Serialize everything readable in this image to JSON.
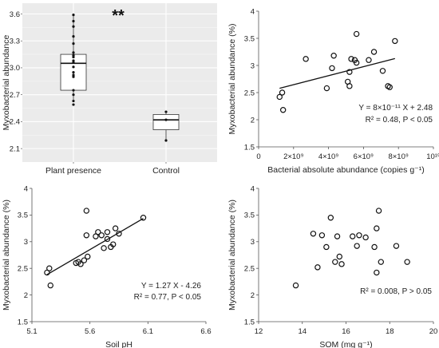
{
  "chart_data": [
    {
      "type": "box",
      "panel": "top-left",
      "categories": [
        "Plant presence",
        "Control"
      ],
      "ylabel": "Myxobacterial abundance",
      "yticks": [
        "2.1",
        "2.4",
        "2.7",
        "3.0",
        "3.3",
        "3.6"
      ],
      "ylim": [
        1.95,
        3.72
      ],
      "significance": "**",
      "grid": true,
      "boxes": [
        {
          "name": "Plant presence",
          "min": 2.63,
          "q1": 2.75,
          "median": 3.05,
          "q3": 3.15,
          "max": 3.59,
          "points": [
            3.59,
            3.52,
            3.46,
            3.35,
            3.27,
            3.17,
            3.14,
            3.12,
            3.08,
            3.06,
            3.01,
            2.95,
            2.92,
            2.9,
            2.75,
            2.7,
            2.63,
            2.59
          ]
        },
        {
          "name": "Control",
          "min": 2.19,
          "q1": 2.31,
          "median": 2.42,
          "q3": 2.48,
          "max": 2.51,
          "points": [
            2.51,
            2.42,
            2.19
          ]
        }
      ]
    },
    {
      "type": "scatter",
      "panel": "top-right",
      "xlabel": "Bacterial absolute abundance (copies g⁻¹)",
      "ylabel": "Myxobacterial abundance (%)",
      "xticks": [
        "0",
        "2×10⁹",
        "4×10⁹",
        "6×10⁹",
        "8×10⁹",
        "10¹⁰"
      ],
      "xlim": [
        0,
        10
      ],
      "yticks": [
        "1.5",
        "2",
        "2.5",
        "3",
        "3.5",
        "4"
      ],
      "ylim": [
        1.5,
        4
      ],
      "x": [
        1.2,
        1.35,
        1.4,
        2.7,
        3.9,
        4.2,
        4.3,
        5.1,
        5.2,
        5.3,
        5.5,
        5.6,
        5.6,
        5.2,
        6.3,
        6.6,
        7.1,
        7.4,
        7.5,
        7.8
      ],
      "y": [
        2.42,
        2.5,
        2.18,
        3.12,
        2.58,
        2.95,
        3.18,
        2.7,
        2.62,
        3.12,
        3.1,
        3.05,
        3.58,
        2.88,
        3.1,
        3.25,
        2.9,
        2.62,
        2.6,
        3.45
      ],
      "fit": {
        "slope": 0.0829,
        "intercept": 2.48,
        "x_range": [
          1.2,
          7.8
        ]
      },
      "equation": "Y = 8×10⁻¹¹ X + 2.48",
      "stats": "R² = 0.48, P < 0.05"
    },
    {
      "type": "scatter",
      "panel": "bottom-left",
      "xlabel": "Soil pH",
      "ylabel": "Myxobacterial abundance (%)",
      "xticks": [
        "5.1",
        "5.6",
        "6.1",
        "6.6"
      ],
      "xlim": [
        5.1,
        6.6
      ],
      "yticks": [
        "1.5",
        "2",
        "2.5",
        "3",
        "3.5",
        "4"
      ],
      "ylim": [
        1.5,
        4
      ],
      "x": [
        5.23,
        5.25,
        5.26,
        5.48,
        5.5,
        5.52,
        5.55,
        5.57,
        5.57,
        5.58,
        5.65,
        5.67,
        5.7,
        5.72,
        5.75,
        5.75,
        5.78,
        5.8,
        5.82,
        5.85,
        6.06
      ],
      "y": [
        2.42,
        2.5,
        2.18,
        2.6,
        2.62,
        2.58,
        2.65,
        3.12,
        3.58,
        2.72,
        3.1,
        3.18,
        3.12,
        2.88,
        3.05,
        3.18,
        2.9,
        2.95,
        3.25,
        3.15,
        3.45
      ],
      "fit": {
        "slope": 1.27,
        "intercept": -4.26,
        "x_range": [
          5.23,
          6.06
        ]
      },
      "equation": "Y = 1.27 X - 4.26",
      "stats": "R² = 0.77, P < 0.05"
    },
    {
      "type": "scatter",
      "panel": "bottom-right",
      "xlabel": "SOM (mg g⁻¹)",
      "ylabel": "Myxobacterial abundance (%)",
      "xticks": [
        "12",
        "14",
        "16",
        "18",
        "20"
      ],
      "xlim": [
        12,
        20
      ],
      "yticks": [
        "1.5",
        "2",
        "2.5",
        "3",
        "3.5",
        "4"
      ],
      "ylim": [
        1.5,
        4
      ],
      "x": [
        13.7,
        14.5,
        14.7,
        14.9,
        15.1,
        15.3,
        15.5,
        15.7,
        15.8,
        15.6,
        16.3,
        16.5,
        16.6,
        16.9,
        17.3,
        17.4,
        17.5,
        17.4,
        17.6,
        18.3,
        18.8
      ],
      "y": [
        2.18,
        3.15,
        2.52,
        3.12,
        2.9,
        3.45,
        2.62,
        2.72,
        2.58,
        3.1,
        3.1,
        2.92,
        3.12,
        3.08,
        2.9,
        3.25,
        3.58,
        2.42,
        2.62,
        2.92,
        2.62
      ],
      "stats": "R² = 0.008, P > 0.05"
    }
  ]
}
